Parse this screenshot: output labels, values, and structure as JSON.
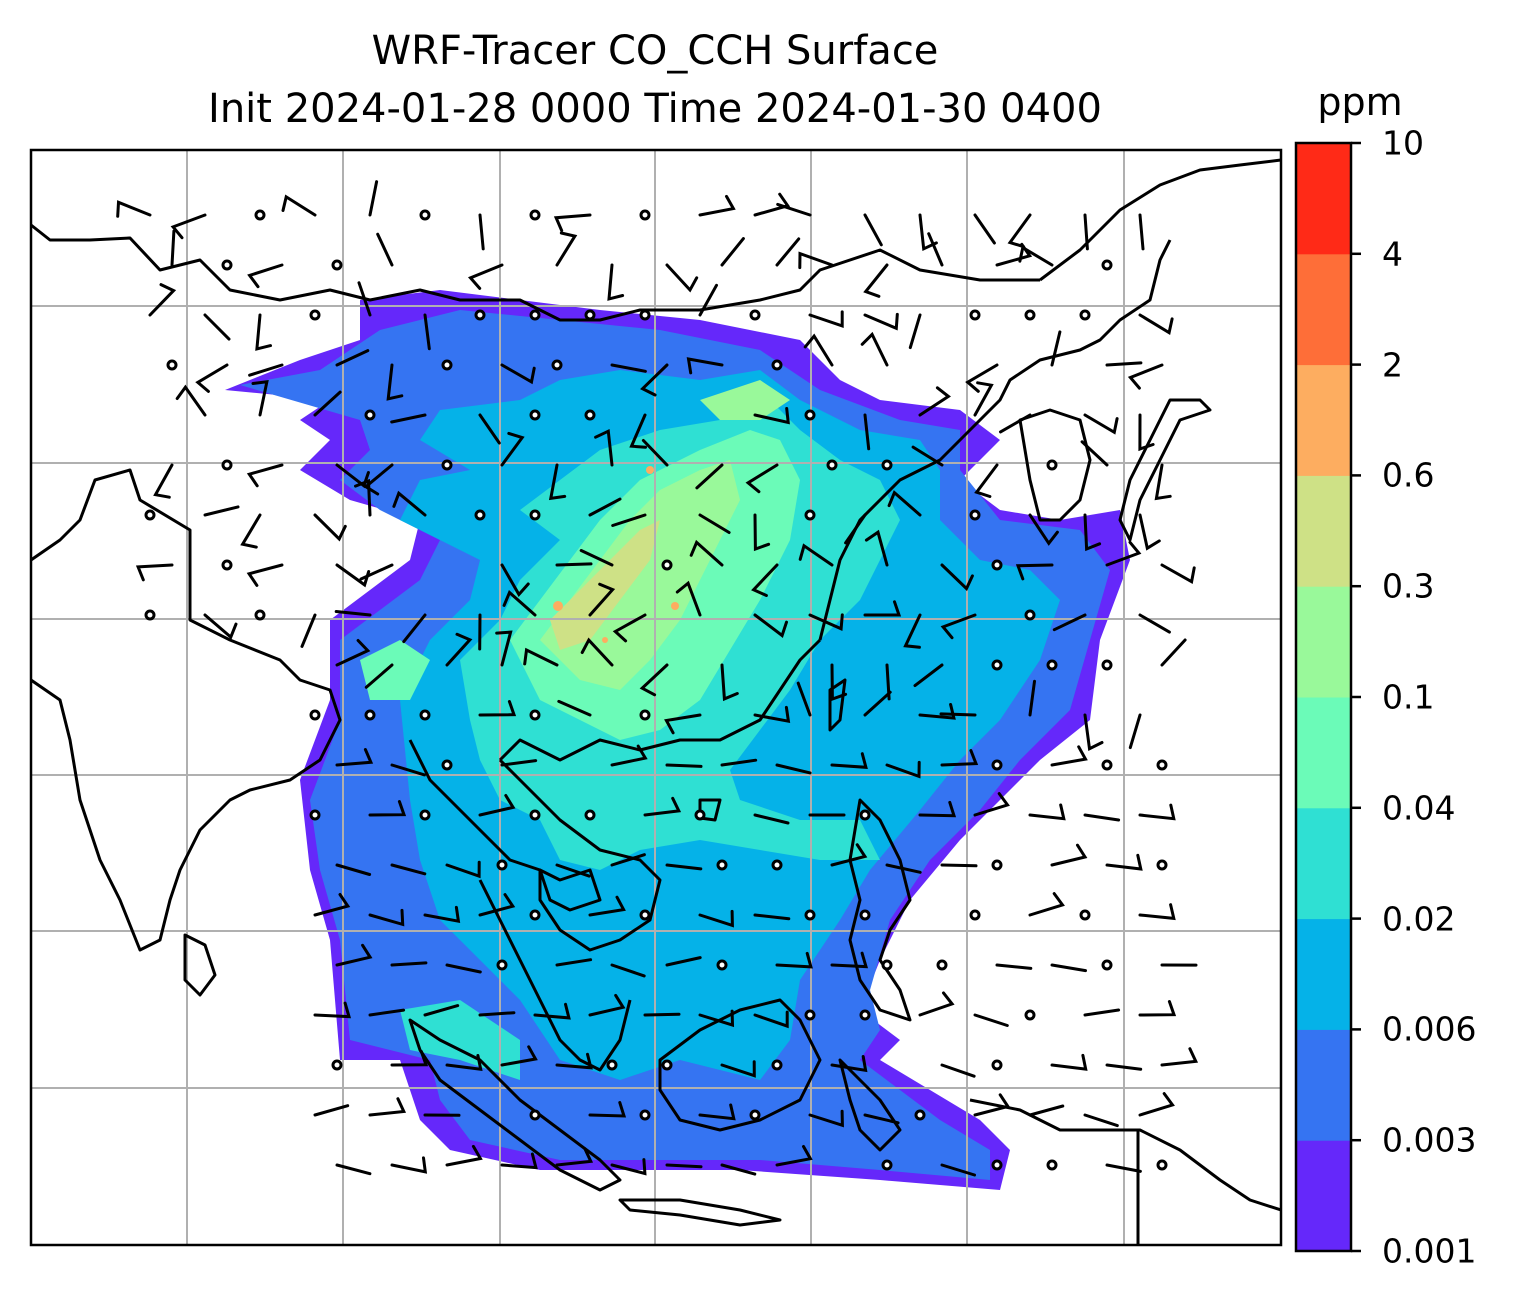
{
  "title_line1": "WRF-Tracer CO_CCH Surface",
  "title_line2": "Init 2024-01-28 0000 Time 2024-01-30 0400",
  "colorbar": {
    "unit": "ppm",
    "levels": [
      "0.001",
      "0.003",
      "0.006",
      "0.02",
      "0.04",
      "0.1",
      "0.3",
      "0.6",
      "2",
      "4",
      "10"
    ],
    "colors": [
      "#6528fa",
      "#3574f2",
      "#05b2e8",
      "#2fe0d3",
      "#6bfbb8",
      "#99f99a",
      "#cee186",
      "#fdad60",
      "#fe6e38",
      "#ff2a17"
    ]
  },
  "map": {
    "background": "#ffffff",
    "coastline_color": "#000000",
    "gridline_color": "#b0b0b0",
    "wind_barb_color": "#000000"
  }
}
